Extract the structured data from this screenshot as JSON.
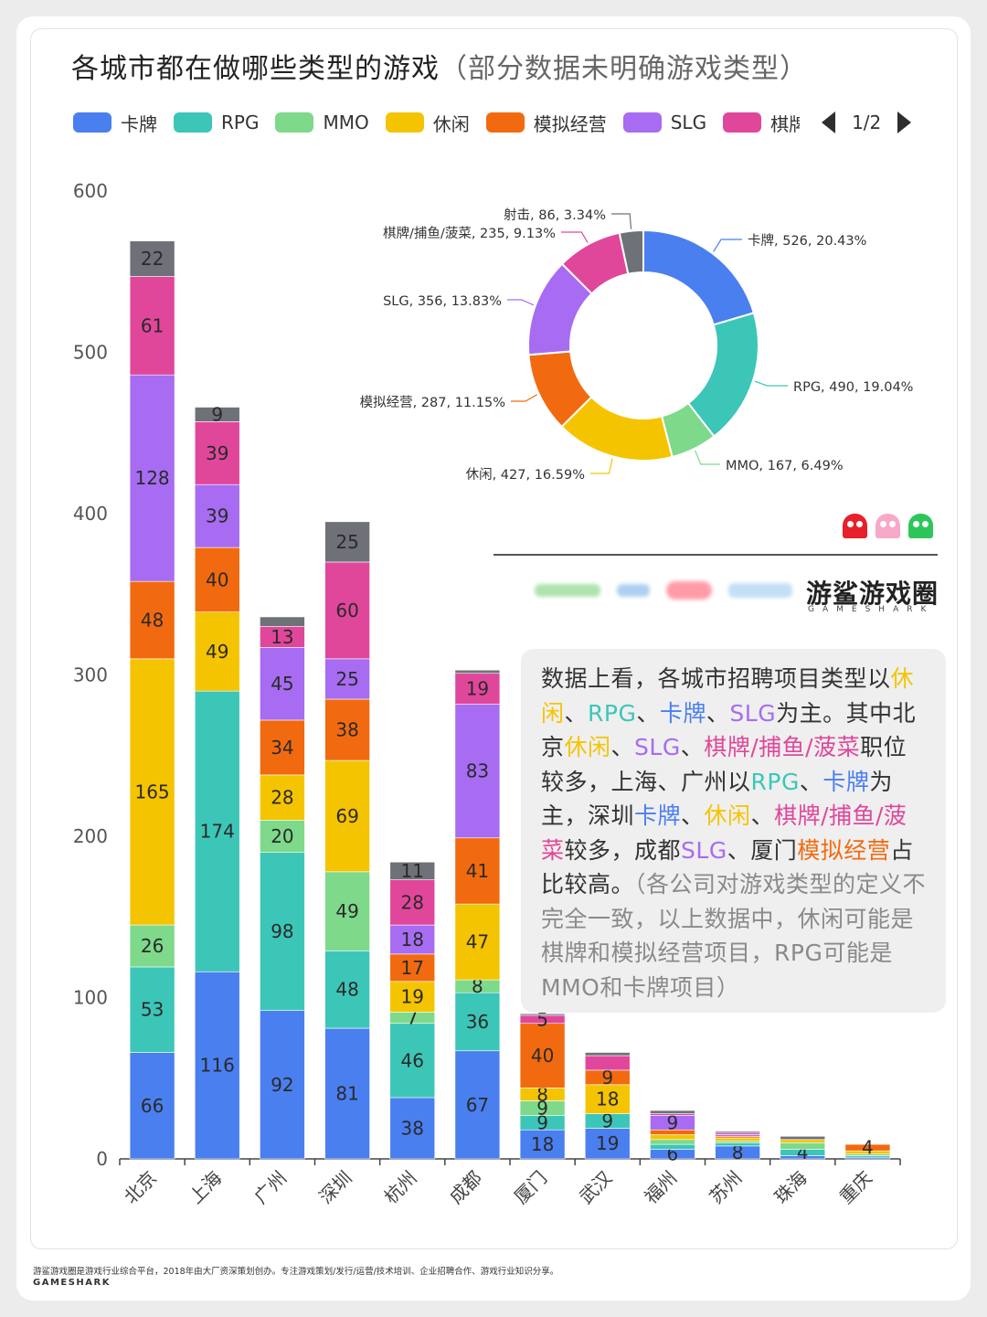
{
  "title": "各城市都在做哪些类型的游戏",
  "subtitle": "（部分数据未明确游戏类型）",
  "legend": {
    "items": [
      {
        "label": "卡牌",
        "color": "#4a7ff0"
      },
      {
        "label": "RPG",
        "color": "#3cc6b8"
      },
      {
        "label": "MMO",
        "color": "#7ed98a"
      },
      {
        "label": "休闲",
        "color": "#f5c400"
      },
      {
        "label": "模拟经营",
        "color": "#f26a0f"
      },
      {
        "label": "SLG",
        "color": "#a76cf2"
      },
      {
        "label": "棋牌",
        "color": "#e0479b"
      }
    ],
    "page": "1/2"
  },
  "chart_data": [
    {
      "type": "bar",
      "stacked": true,
      "categories": [
        "北京",
        "上海",
        "广州",
        "深圳",
        "杭州",
        "成都",
        "厦门",
        "武汉",
        "福州",
        "苏州",
        "珠海",
        "重庆"
      ],
      "ylim": [
        0,
        600
      ],
      "yticks": [
        0,
        100,
        200,
        300,
        400,
        500,
        600
      ],
      "series": [
        {
          "name": "卡牌",
          "color": "#4a7ff0",
          "values": [
            66,
            116,
            92,
            81,
            38,
            67,
            18,
            19,
            6,
            8,
            2,
            1
          ]
        },
        {
          "name": "RPG",
          "color": "#3cc6b8",
          "values": [
            53,
            174,
            98,
            48,
            46,
            36,
            9,
            9,
            3,
            2,
            4,
            1
          ]
        },
        {
          "name": "MMO",
          "color": "#7ed98a",
          "values": [
            26,
            0,
            20,
            49,
            7,
            8,
            9,
            0,
            3,
            1,
            4,
            1
          ]
        },
        {
          "name": "休闲",
          "color": "#f5c400",
          "values": [
            165,
            49,
            28,
            69,
            19,
            47,
            8,
            18,
            3,
            2,
            2,
            2
          ]
        },
        {
          "name": "模拟经营",
          "color": "#f26a0f",
          "values": [
            48,
            40,
            34,
            38,
            17,
            41,
            40,
            9,
            3,
            1,
            0,
            4
          ]
        },
        {
          "name": "SLG",
          "color": "#a76cf2",
          "values": [
            128,
            39,
            45,
            25,
            18,
            83,
            0,
            0,
            9,
            1,
            0,
            0
          ]
        },
        {
          "name": "棋牌/捕鱼/菠菜",
          "color": "#e0479b",
          "values": [
            61,
            39,
            13,
            60,
            28,
            19,
            5,
            9,
            1,
            1,
            0,
            0
          ]
        },
        {
          "name": "射击",
          "color": "#6f7178",
          "values": [
            22,
            9,
            6,
            25,
            11,
            2,
            1,
            2,
            2,
            1,
            2,
            0
          ]
        }
      ],
      "data_labels": [
        [
          "66",
          "53",
          "26",
          "165",
          "48",
          "128",
          "61",
          "22"
        ],
        [
          "116",
          "174",
          "",
          "49",
          "40",
          "39",
          "39",
          "9"
        ],
        [
          "92",
          "98",
          "20",
          "28",
          "34",
          "45",
          "13",
          ""
        ],
        [
          "81",
          "48",
          "49",
          "69",
          "38",
          "25",
          "60",
          "25"
        ],
        [
          "38",
          "46",
          "7",
          "19",
          "17",
          "18",
          "28",
          "11"
        ],
        [
          "67",
          "36",
          "8",
          "47",
          "41",
          "83",
          "19",
          ""
        ],
        [
          "18",
          "9",
          "9",
          "8",
          "40",
          "",
          "5",
          ""
        ],
        [
          "19",
          "9",
          "",
          "18",
          "9",
          "",
          "",
          ""
        ],
        [
          "6",
          "",
          "",
          "",
          "",
          "9",
          "",
          ""
        ],
        [
          "8",
          "",
          "",
          "",
          "",
          "",
          "",
          ""
        ],
        [
          "",
          "4",
          "",
          "",
          "",
          "",
          "",
          ""
        ],
        [
          "",
          "",
          "",
          "",
          "4",
          "",
          "",
          ""
        ]
      ]
    },
    {
      "type": "pie",
      "donut": true,
      "slices": [
        {
          "label": "卡牌, 526, 20.43%",
          "name": "卡牌",
          "value": 526,
          "percent": 20.43,
          "color": "#4a7ff0"
        },
        {
          "label": "RPG, 490, 19.04%",
          "name": "RPG",
          "value": 490,
          "percent": 19.04,
          "color": "#3cc6b8"
        },
        {
          "label": "MMO, 167, 6.49%",
          "name": "MMO",
          "value": 167,
          "percent": 6.49,
          "color": "#7ed98a"
        },
        {
          "label": "休闲, 427, 16.59%",
          "name": "休闲",
          "value": 427,
          "percent": 16.59,
          "color": "#f5c400"
        },
        {
          "label": "模拟经营, 287, 11.15%",
          "name": "模拟经营",
          "value": 287,
          "percent": 11.15,
          "color": "#f26a0f"
        },
        {
          "label": "SLG, 356, 13.83%",
          "name": "SLG",
          "value": 356,
          "percent": 13.83,
          "color": "#a76cf2"
        },
        {
          "label": "棋牌/捕鱼/菠菜, 235, 9.13%",
          "name": "棋牌/捕鱼/菠菜",
          "value": 235,
          "percent": 9.13,
          "color": "#e0479b"
        },
        {
          "label": "射击, 86, 3.34%",
          "name": "射击",
          "value": 86,
          "percent": 3.34,
          "color": "#6f7178"
        }
      ]
    }
  ],
  "textbox": {
    "segments": [
      {
        "text": "数据上看，各城市招聘项目类型以",
        "color": "#333333"
      },
      {
        "text": "休闲",
        "color": "#f5c400"
      },
      {
        "text": "、",
        "color": "#333333"
      },
      {
        "text": "RPG",
        "color": "#3cc6b8"
      },
      {
        "text": "、",
        "color": "#333333"
      },
      {
        "text": "卡牌",
        "color": "#4a7ff0"
      },
      {
        "text": "、",
        "color": "#333333"
      },
      {
        "text": "SLG",
        "color": "#a76cf2"
      },
      {
        "text": "为主。其中北京",
        "color": "#333333"
      },
      {
        "text": "休闲",
        "color": "#f5c400"
      },
      {
        "text": "、",
        "color": "#333333"
      },
      {
        "text": "SLG",
        "color": "#a76cf2"
      },
      {
        "text": "、",
        "color": "#333333"
      },
      {
        "text": "棋牌/捕鱼/菠菜",
        "color": "#e0479b"
      },
      {
        "text": "职位较多，上海、广州以",
        "color": "#333333"
      },
      {
        "text": "RPG",
        "color": "#3cc6b8"
      },
      {
        "text": "、",
        "color": "#333333"
      },
      {
        "text": "卡牌",
        "color": "#4a7ff0"
      },
      {
        "text": "为主，深圳",
        "color": "#333333"
      },
      {
        "text": "卡牌",
        "color": "#4a7ff0"
      },
      {
        "text": "、",
        "color": "#333333"
      },
      {
        "text": "休闲",
        "color": "#f5c400"
      },
      {
        "text": "、",
        "color": "#333333"
      },
      {
        "text": "棋牌/捕鱼/菠菜",
        "color": "#e0479b"
      },
      {
        "text": "较多，成都",
        "color": "#333333"
      },
      {
        "text": "SLG",
        "color": "#a76cf2"
      },
      {
        "text": "、厦门",
        "color": "#333333"
      },
      {
        "text": "模拟经营",
        "color": "#f26a0f"
      },
      {
        "text": "占比较高。",
        "color": "#333333"
      },
      {
        "text": "（各公司对游戏类型的定义不完全一致，以上数据中，休闲可能是棋牌和模拟经营项目，RPG可能是MMO和卡牌项目）",
        "color": "#8a8a8a"
      }
    ]
  },
  "brand": {
    "name": "游鲨游戏圈",
    "sub": "GAMESHARK"
  },
  "footer": {
    "line1": "游鲨游戏圈是游戏行业综合平台，2018年由大厂资深策划创办。专注游戏策划/发行/运营/技术培训、企业招聘合作、游戏行业知识分享。",
    "line2": "GAMESHARK"
  },
  "ghost_colors": [
    "#e8202a",
    "#f8a8c8",
    "#2ec65a"
  ]
}
